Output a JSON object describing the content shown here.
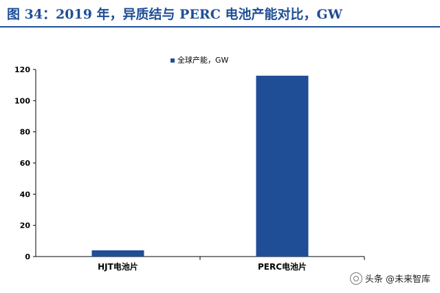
{
  "title": "图 34：2019 年，异质结与 PERC 电池产能对比，GW",
  "watermark": "头条 @未来智库",
  "chart_data": {
    "type": "bar",
    "categories": [
      "HJT电池片",
      "PERC电池片"
    ],
    "series": [
      {
        "name": "全球产能，GW",
        "values": [
          4,
          116
        ],
        "color": "#1f4e96"
      }
    ],
    "ylim": [
      0,
      120
    ],
    "yticks": [
      0,
      20,
      40,
      60,
      80,
      100,
      120
    ],
    "xlabel": "",
    "ylabel": "",
    "grid": false,
    "legend": "top-center"
  }
}
